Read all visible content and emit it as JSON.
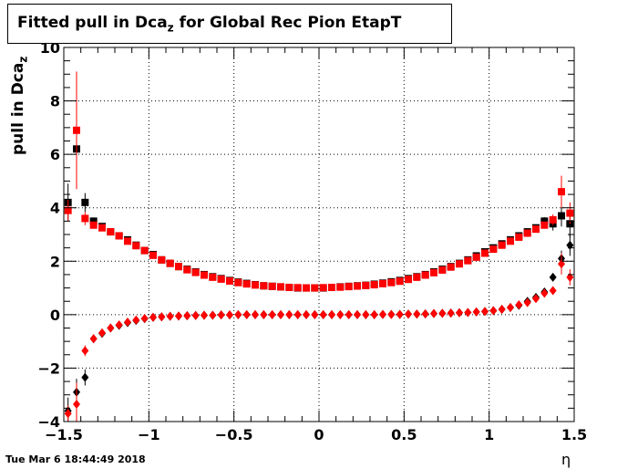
{
  "chart_data": {
    "type": "scatter",
    "title_main": "Fitted pull in Dca",
    "title_sub": "z",
    "title_rest": " for Global Rec Pion EtapT",
    "ylabel_main": "pull in Dca",
    "ylabel_sub": "z",
    "xlabel": "η",
    "xlim": [
      -1.5,
      1.5
    ],
    "ylim": [
      -4,
      10
    ],
    "xticks": [
      -1.5,
      -1,
      -0.5,
      0,
      0.5,
      1,
      1.5
    ],
    "xtick_labels": [
      "−1.5",
      "−1",
      "−0.5",
      "0",
      "0.5",
      "1",
      "1.5"
    ],
    "yticks": [
      -4,
      -2,
      0,
      2,
      4,
      6,
      8,
      10
    ],
    "ytick_labels": [
      "−4",
      "−2",
      "0",
      "2",
      "4",
      "6",
      "8",
      "10"
    ],
    "grid": true,
    "colors": {
      "black": "#000000",
      "red": "#ff0000"
    },
    "series": [
      {
        "marker": "square",
        "color": "#000000",
        "x": [
          -1.475,
          -1.425,
          -1.375,
          -1.325,
          -1.275,
          -1.225,
          -1.175,
          -1.125,
          -1.075,
          -1.025,
          -0.975,
          -0.925,
          -0.875,
          -0.825,
          -0.775,
          -0.725,
          -0.675,
          -0.625,
          -0.575,
          -0.525,
          -0.475,
          -0.425,
          -0.375,
          -0.325,
          -0.275,
          -0.225,
          -0.175,
          -0.125,
          -0.075,
          -0.025,
          0.025,
          0.075,
          0.125,
          0.175,
          0.225,
          0.275,
          0.325,
          0.375,
          0.425,
          0.475,
          0.525,
          0.575,
          0.625,
          0.675,
          0.725,
          0.775,
          0.825,
          0.875,
          0.925,
          0.975,
          1.025,
          1.075,
          1.125,
          1.175,
          1.225,
          1.275,
          1.325,
          1.375,
          1.425,
          1.475
        ],
        "y": [
          4.2,
          6.2,
          4.2,
          3.5,
          3.3,
          3.1,
          2.95,
          2.8,
          2.6,
          2.4,
          2.25,
          2.05,
          1.92,
          1.8,
          1.7,
          1.6,
          1.5,
          1.42,
          1.35,
          1.28,
          1.22,
          1.17,
          1.12,
          1.08,
          1.06,
          1.04,
          1.02,
          1.0,
          1.0,
          1.0,
          1.0,
          1.02,
          1.04,
          1.06,
          1.08,
          1.1,
          1.14,
          1.18,
          1.23,
          1.28,
          1.35,
          1.42,
          1.5,
          1.6,
          1.7,
          1.8,
          1.92,
          2.05,
          2.2,
          2.35,
          2.5,
          2.65,
          2.8,
          2.95,
          3.1,
          3.25,
          3.5,
          3.4,
          3.7,
          3.4
        ],
        "yerr": [
          0.7,
          0.9,
          0.35,
          0.12,
          0.08,
          0.06,
          0.05,
          0.04,
          0.04,
          0.03,
          0.03,
          0.03,
          0.03,
          0.02,
          0.02,
          0.02,
          0.02,
          0.02,
          0.02,
          0.02,
          0.02,
          0.02,
          0.02,
          0.02,
          0.02,
          0.02,
          0.02,
          0.02,
          0.02,
          0.02,
          0.02,
          0.02,
          0.02,
          0.02,
          0.02,
          0.02,
          0.02,
          0.02,
          0.02,
          0.02,
          0.02,
          0.02,
          0.02,
          0.02,
          0.02,
          0.02,
          0.02,
          0.03,
          0.03,
          0.03,
          0.04,
          0.04,
          0.05,
          0.06,
          0.08,
          0.1,
          0.15,
          0.25,
          0.4,
          0.5
        ]
      },
      {
        "marker": "diamond",
        "color": "#000000",
        "x": [
          -1.475,
          -1.425,
          -1.375,
          -1.325,
          -1.275,
          -1.225,
          -1.175,
          -1.125,
          -1.075,
          -1.025,
          -0.975,
          -0.925,
          -0.875,
          -0.825,
          -0.775,
          -0.725,
          -0.675,
          -0.625,
          -0.575,
          -0.525,
          -0.475,
          -0.425,
          -0.375,
          -0.325,
          -0.275,
          -0.225,
          -0.175,
          -0.125,
          -0.075,
          -0.025,
          0.025,
          0.075,
          0.125,
          0.175,
          0.225,
          0.275,
          0.325,
          0.375,
          0.425,
          0.475,
          0.525,
          0.575,
          0.625,
          0.675,
          0.725,
          0.775,
          0.825,
          0.875,
          0.925,
          0.975,
          1.025,
          1.075,
          1.125,
          1.175,
          1.225,
          1.275,
          1.325,
          1.375,
          1.425,
          1.475
        ],
        "y": [
          -3.6,
          -2.9,
          -2.35,
          -0.9,
          -0.7,
          -0.5,
          -0.4,
          -0.3,
          -0.22,
          -0.15,
          -0.1,
          -0.08,
          -0.06,
          -0.05,
          -0.04,
          -0.03,
          -0.02,
          -0.02,
          -0.01,
          -0.01,
          0,
          0,
          0,
          0,
          0,
          0,
          0,
          0,
          0,
          0,
          0,
          0,
          0,
          0,
          0,
          0,
          0,
          0.01,
          0.01,
          0.01,
          0.02,
          0.02,
          0.03,
          0.04,
          0.05,
          0.06,
          0.07,
          0.08,
          0.1,
          0.12,
          0.15,
          0.2,
          0.27,
          0.35,
          0.5,
          0.65,
          0.85,
          1.4,
          2.1,
          2.6
        ],
        "yerr": [
          0.5,
          0.5,
          0.3,
          0.1,
          0.06,
          0.05,
          0.04,
          0.03,
          0.03,
          0.03,
          0.02,
          0.02,
          0.02,
          0.02,
          0.02,
          0.02,
          0.02,
          0.02,
          0.02,
          0.02,
          0.02,
          0.02,
          0.02,
          0.02,
          0.02,
          0.02,
          0.02,
          0.02,
          0.02,
          0.02,
          0.02,
          0.02,
          0.02,
          0.02,
          0.02,
          0.02,
          0.02,
          0.02,
          0.02,
          0.02,
          0.02,
          0.02,
          0.02,
          0.02,
          0.02,
          0.02,
          0.02,
          0.02,
          0.02,
          0.02,
          0.03,
          0.03,
          0.03,
          0.04,
          0.05,
          0.06,
          0.08,
          0.15,
          0.3,
          0.4
        ]
      },
      {
        "marker": "square",
        "color": "#ff0000",
        "x": [
          -1.475,
          -1.425,
          -1.375,
          -1.325,
          -1.275,
          -1.225,
          -1.175,
          -1.125,
          -1.075,
          -1.025,
          -0.975,
          -0.925,
          -0.875,
          -0.825,
          -0.775,
          -0.725,
          -0.675,
          -0.625,
          -0.575,
          -0.525,
          -0.475,
          -0.425,
          -0.375,
          -0.325,
          -0.275,
          -0.225,
          -0.175,
          -0.125,
          -0.075,
          -0.025,
          0.025,
          0.075,
          0.125,
          0.175,
          0.225,
          0.275,
          0.325,
          0.375,
          0.425,
          0.475,
          0.525,
          0.575,
          0.625,
          0.675,
          0.725,
          0.775,
          0.825,
          0.875,
          0.925,
          0.975,
          1.025,
          1.075,
          1.125,
          1.175,
          1.225,
          1.275,
          1.325,
          1.375,
          1.425,
          1.475
        ],
        "y": [
          3.9,
          6.9,
          3.6,
          3.35,
          3.25,
          3.1,
          2.95,
          2.75,
          2.58,
          2.4,
          2.22,
          2.05,
          1.92,
          1.8,
          1.68,
          1.58,
          1.48,
          1.4,
          1.33,
          1.26,
          1.2,
          1.15,
          1.11,
          1.08,
          1.06,
          1.04,
          1.02,
          1.01,
          1.0,
          1.0,
          1.01,
          1.02,
          1.03,
          1.05,
          1.07,
          1.09,
          1.12,
          1.16,
          1.2,
          1.25,
          1.32,
          1.4,
          1.48,
          1.57,
          1.67,
          1.78,
          1.9,
          2.02,
          2.15,
          2.3,
          2.45,
          2.6,
          2.75,
          2.9,
          3.05,
          3.2,
          3.35,
          3.55,
          4.6,
          3.8
        ],
        "yerr": [
          0.4,
          2.2,
          0.25,
          0.12,
          0.08,
          0.06,
          0.05,
          0.04,
          0.04,
          0.03,
          0.03,
          0.03,
          0.03,
          0.02,
          0.02,
          0.02,
          0.02,
          0.02,
          0.02,
          0.02,
          0.02,
          0.02,
          0.02,
          0.02,
          0.02,
          0.02,
          0.02,
          0.02,
          0.02,
          0.02,
          0.02,
          0.02,
          0.02,
          0.02,
          0.02,
          0.02,
          0.02,
          0.02,
          0.02,
          0.02,
          0.02,
          0.02,
          0.02,
          0.02,
          0.02,
          0.02,
          0.02,
          0.03,
          0.03,
          0.03,
          0.04,
          0.04,
          0.05,
          0.06,
          0.08,
          0.1,
          0.12,
          0.2,
          0.6,
          0.4
        ]
      },
      {
        "marker": "diamond",
        "color": "#ff0000",
        "x": [
          -1.475,
          -1.425,
          -1.375,
          -1.325,
          -1.275,
          -1.225,
          -1.175,
          -1.125,
          -1.075,
          -1.025,
          -0.975,
          -0.925,
          -0.875,
          -0.825,
          -0.775,
          -0.725,
          -0.675,
          -0.625,
          -0.575,
          -0.525,
          -0.475,
          -0.425,
          -0.375,
          -0.325,
          -0.275,
          -0.225,
          -0.175,
          -0.125,
          -0.075,
          -0.025,
          0.025,
          0.075,
          0.125,
          0.175,
          0.225,
          0.275,
          0.325,
          0.375,
          0.425,
          0.475,
          0.525,
          0.575,
          0.625,
          0.675,
          0.725,
          0.775,
          0.825,
          0.875,
          0.925,
          0.975,
          1.025,
          1.075,
          1.125,
          1.175,
          1.225,
          1.275,
          1.325,
          1.375,
          1.425,
          1.475
        ],
        "y": [
          -3.7,
          -3.35,
          -1.35,
          -0.9,
          -0.68,
          -0.5,
          -0.38,
          -0.28,
          -0.2,
          -0.14,
          -0.1,
          -0.08,
          -0.06,
          -0.05,
          -0.04,
          -0.03,
          -0.02,
          -0.02,
          -0.01,
          -0.01,
          0,
          0,
          0,
          0,
          0,
          0,
          0,
          0,
          0,
          0,
          0,
          0,
          0,
          0,
          0,
          0,
          0,
          0.01,
          0.01,
          0.01,
          0.02,
          0.02,
          0.03,
          0.04,
          0.05,
          0.06,
          0.07,
          0.08,
          0.1,
          0.12,
          0.15,
          0.2,
          0.27,
          0.37,
          0.45,
          0.6,
          0.8,
          0.9,
          1.9,
          1.4
        ],
        "yerr": [
          0.3,
          0.8,
          0.2,
          0.1,
          0.06,
          0.05,
          0.04,
          0.03,
          0.03,
          0.03,
          0.02,
          0.02,
          0.02,
          0.02,
          0.02,
          0.02,
          0.02,
          0.02,
          0.02,
          0.02,
          0.02,
          0.02,
          0.02,
          0.02,
          0.02,
          0.02,
          0.02,
          0.02,
          0.02,
          0.02,
          0.02,
          0.02,
          0.02,
          0.02,
          0.02,
          0.02,
          0.02,
          0.02,
          0.02,
          0.02,
          0.02,
          0.02,
          0.02,
          0.02,
          0.02,
          0.02,
          0.02,
          0.02,
          0.02,
          0.02,
          0.03,
          0.03,
          0.03,
          0.04,
          0.05,
          0.06,
          0.08,
          0.1,
          0.4,
          0.3
        ]
      }
    ]
  },
  "footer": {
    "timestamp": "Tue Mar  6 18:44:49 2018"
  }
}
